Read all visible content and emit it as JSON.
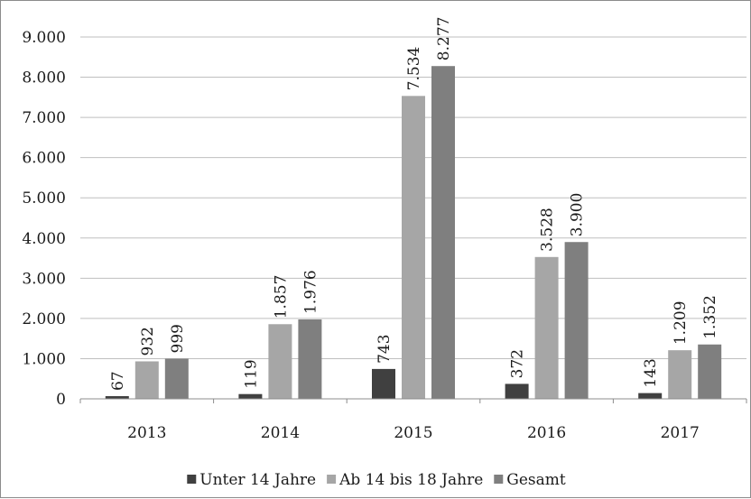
{
  "chart_data": {
    "type": "bar",
    "categories": [
      "2013",
      "2014",
      "2015",
      "2016",
      "2017"
    ],
    "series": [
      {
        "name": "Unter 14 Jahre",
        "values": [
          67,
          119,
          743,
          372,
          143
        ],
        "labels": [
          "67",
          "119",
          "743",
          "372",
          "143"
        ],
        "color": "#404040"
      },
      {
        "name": "Ab 14 bis 18 Jahre",
        "values": [
          932,
          1857,
          7534,
          3528,
          1209
        ],
        "labels": [
          "932",
          "1.857",
          "7.534",
          "3.528",
          "1.209"
        ],
        "color": "#a6a6a6"
      },
      {
        "name": "Gesamt",
        "values": [
          999,
          1976,
          8277,
          3900,
          1352
        ],
        "labels": [
          "999",
          "1.976",
          "8.277",
          "3.900",
          "1.352"
        ],
        "color": "#7f7f7f"
      }
    ],
    "yticks": [
      0,
      1000,
      2000,
      3000,
      4000,
      5000,
      6000,
      7000,
      8000,
      9000
    ],
    "ytick_labels": [
      "0",
      "1.000",
      "2.000",
      "3.000",
      "4.000",
      "5.000",
      "6.000",
      "7.000",
      "8.000",
      "9.000"
    ],
    "ylim": [
      0,
      9000
    ],
    "grid": true,
    "legend_position": "bottom",
    "title": "",
    "xlabel": "",
    "ylabel": ""
  }
}
